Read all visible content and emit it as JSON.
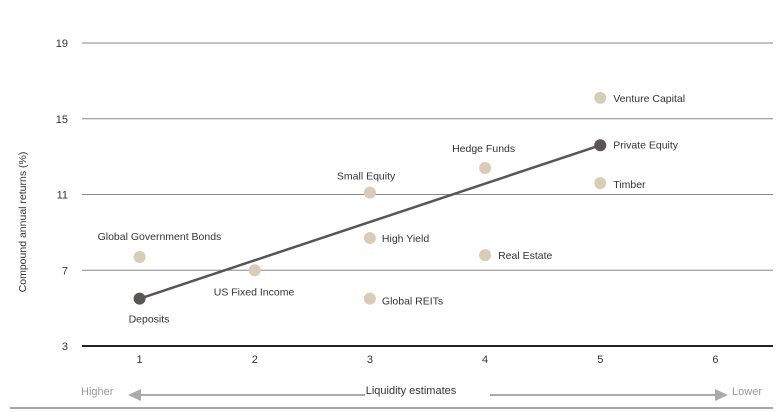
{
  "chart_data": {
    "type": "scatter",
    "ylabel": "Compound annual returns (%)",
    "xlabel": "Liquidity estimates",
    "x_left_label": "Higher",
    "x_right_label": "Lower",
    "xlim": [
      0.5,
      6.5
    ],
    "ylim": [
      3,
      19
    ],
    "xticks": [
      "1",
      "2",
      "3",
      "4",
      "5",
      "6"
    ],
    "yticks": [
      "3",
      "7",
      "11",
      "15",
      "19"
    ],
    "grid": true,
    "colors": {
      "point": "#d9cdb8",
      "highlight": "#5a5555",
      "line": "#5a5555",
      "grid": "#888888",
      "text": "#333333",
      "muted": "#999999",
      "arrow": "#aaaaaa"
    },
    "points": [
      {
        "label": "Global Government Bonds",
        "x": 1.0,
        "y": 7.7,
        "highlight": false
      },
      {
        "label": "Deposits",
        "x": 1.0,
        "y": 5.5,
        "highlight": true
      },
      {
        "label": "US Fixed Income",
        "x": 2.0,
        "y": 7.0,
        "highlight": false
      },
      {
        "label": "Small Equity",
        "x": 3.0,
        "y": 11.1,
        "highlight": false
      },
      {
        "label": "High Yield",
        "x": 3.0,
        "y": 8.7,
        "highlight": false
      },
      {
        "label": "Global REITs",
        "x": 3.0,
        "y": 5.5,
        "highlight": false
      },
      {
        "label": "Hedge Funds",
        "x": 4.0,
        "y": 12.4,
        "highlight": false
      },
      {
        "label": "Real Estate",
        "x": 4.0,
        "y": 7.8,
        "highlight": false
      },
      {
        "label": "Venture Capital",
        "x": 5.0,
        "y": 16.1,
        "highlight": false
      },
      {
        "label": "Private Equity",
        "x": 5.0,
        "y": 13.6,
        "highlight": true
      },
      {
        "label": "Timber",
        "x": 5.0,
        "y": 11.6,
        "highlight": false
      }
    ],
    "trend_line": {
      "from": [
        1.0,
        5.5
      ],
      "to": [
        5.0,
        13.6
      ]
    }
  }
}
